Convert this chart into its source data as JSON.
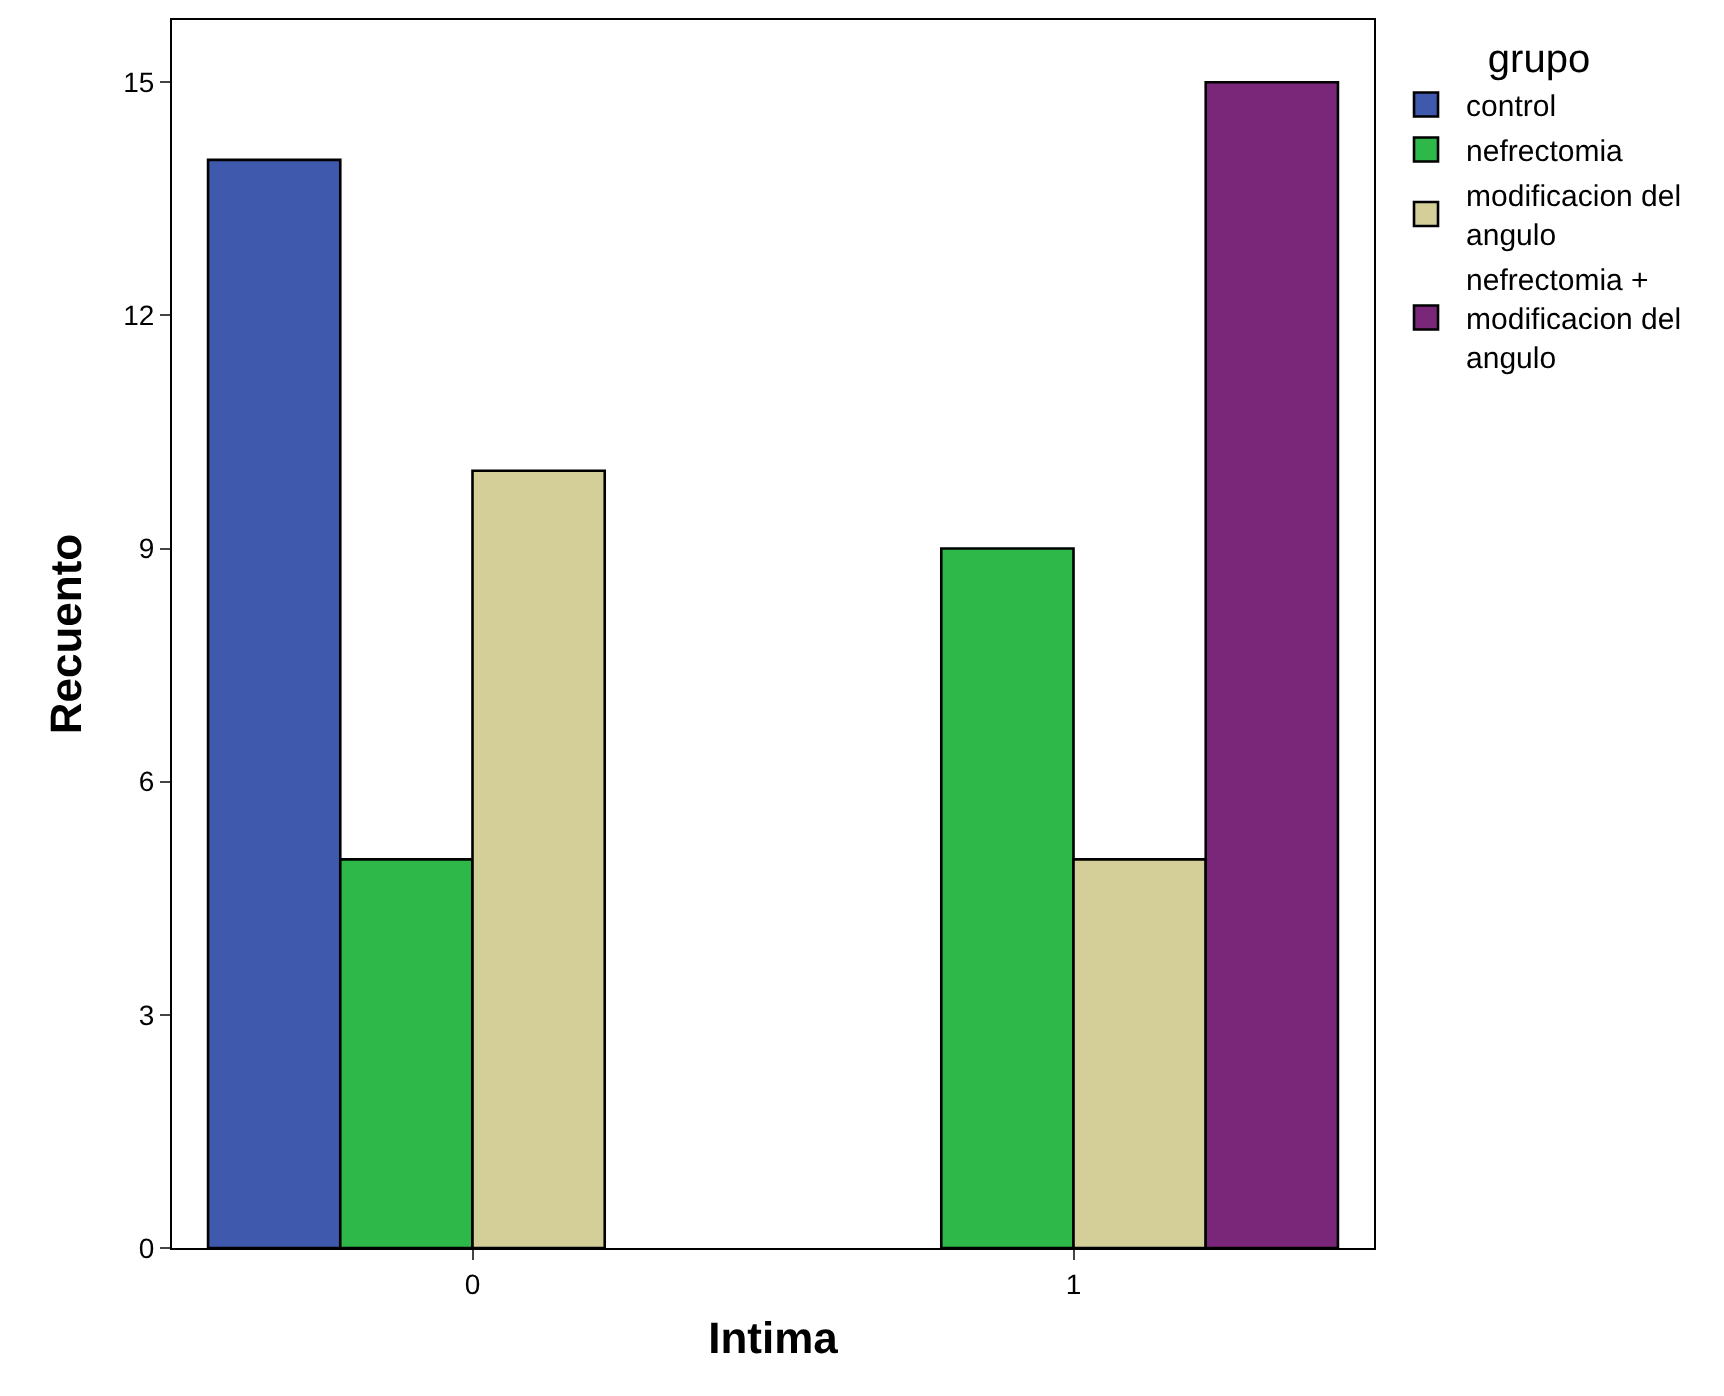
{
  "chart_data": {
    "type": "bar",
    "xlabel": "Intima",
    "ylabel": "Recuento",
    "legend_title": "grupo",
    "categories": [
      "0",
      "1"
    ],
    "series": [
      {
        "name": "control",
        "color": "#3f59ad",
        "values": [
          14,
          null
        ]
      },
      {
        "name": "nefrectomia",
        "color": "#2eb84a",
        "values": [
          5,
          9
        ]
      },
      {
        "name": "modificacion del angulo",
        "color": "#d4cf98",
        "values": [
          10,
          5
        ]
      },
      {
        "name": "nefrectomia + modificacion del angulo",
        "color": "#7b2779",
        "values": [
          null,
          15
        ]
      }
    ],
    "ylim": [
      0,
      15.8
    ],
    "yticks": [
      0,
      3,
      6,
      9,
      12,
      15
    ],
    "grid": false,
    "legend": "right"
  }
}
